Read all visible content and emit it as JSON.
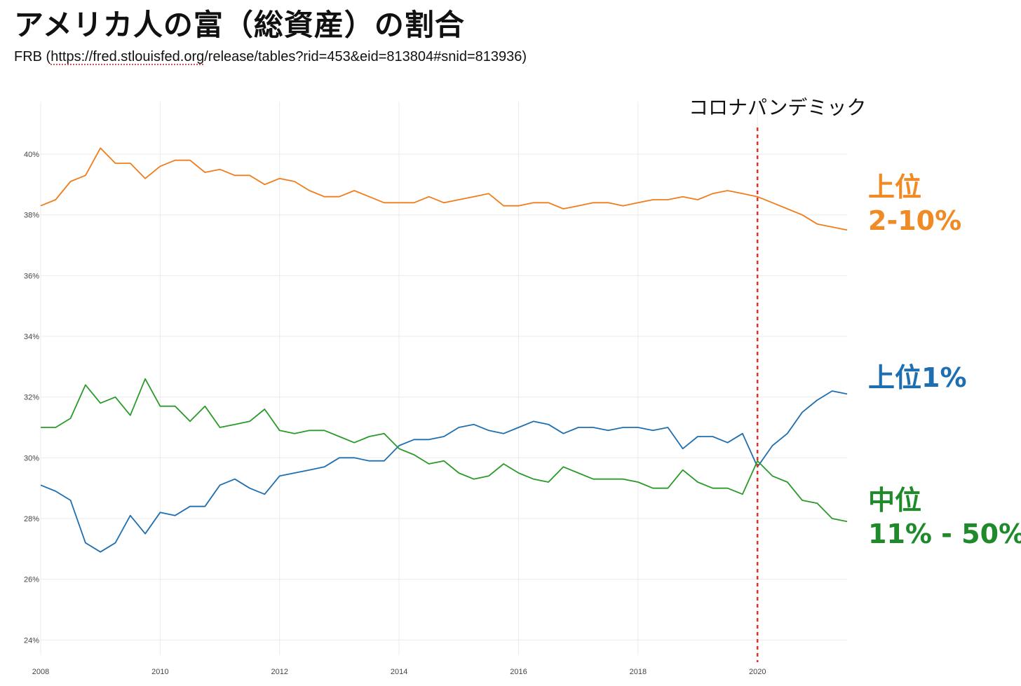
{
  "header": {
    "title": "アメリカ人の富（総資産）の割合",
    "source_prefix": "FRB (",
    "source_link": "https://fred.stlouisfed.org",
    "source_suffix": "/release/tables?rid=453&eid=813804#snid=813936)"
  },
  "labels": {
    "top2_10_line1": "上位",
    "top2_10_line2": "2-10%",
    "top1": "上位1%",
    "mid_line1": "中位",
    "mid_line2": "11% - 50%"
  },
  "chart_data": {
    "type": "line",
    "title": "アメリカ人の富（総資産）の割合",
    "xlim": [
      2008.0,
      2021.5
    ],
    "ylim": [
      23.5,
      41.5
    ],
    "x_ticks": [
      "2008",
      "2010",
      "2012",
      "2014",
      "2016",
      "2018",
      "2020"
    ],
    "y_ticks": [
      "24%",
      "26%",
      "28%",
      "30%",
      "32%",
      "34%",
      "36%",
      "38%",
      "40%"
    ],
    "grid": true,
    "x": [
      2008.0,
      2008.25,
      2008.5,
      2008.75,
      2009.0,
      2009.25,
      2009.5,
      2009.75,
      2010.0,
      2010.25,
      2010.5,
      2010.75,
      2011.0,
      2011.25,
      2011.5,
      2011.75,
      2012.0,
      2012.25,
      2012.5,
      2012.75,
      2013.0,
      2013.25,
      2013.5,
      2013.75,
      2014.0,
      2014.25,
      2014.5,
      2014.75,
      2015.0,
      2015.25,
      2015.5,
      2015.75,
      2016.0,
      2016.25,
      2016.5,
      2016.75,
      2017.0,
      2017.25,
      2017.5,
      2017.75,
      2018.0,
      2018.25,
      2018.5,
      2018.75,
      2019.0,
      2019.25,
      2019.5,
      2019.75,
      2020.0,
      2020.25,
      2020.5,
      2020.75,
      2021.0,
      2021.25,
      2021.5
    ],
    "series": [
      {
        "key": "top2_10",
        "color": "#f07d1c",
        "values": [
          38.3,
          38.5,
          39.1,
          39.3,
          40.2,
          39.7,
          39.7,
          39.2,
          39.6,
          39.8,
          39.8,
          39.4,
          39.5,
          39.3,
          39.3,
          39.0,
          39.2,
          39.1,
          38.8,
          38.6,
          38.6,
          38.8,
          38.6,
          38.4,
          38.4,
          38.4,
          38.6,
          38.4,
          38.5,
          38.6,
          38.7,
          38.3,
          38.3,
          38.4,
          38.4,
          38.2,
          38.3,
          38.4,
          38.4,
          38.3,
          38.4,
          38.5,
          38.5,
          38.6,
          38.5,
          38.7,
          38.8,
          38.7,
          38.6,
          38.4,
          38.2,
          38.0,
          37.7,
          37.6,
          37.5
        ]
      },
      {
        "key": "top1",
        "color": "#1f6fb0",
        "values": [
          29.1,
          28.9,
          28.6,
          27.2,
          26.9,
          27.2,
          28.1,
          27.5,
          28.2,
          28.1,
          28.4,
          28.4,
          29.1,
          29.3,
          29.0,
          28.8,
          29.4,
          29.5,
          29.6,
          29.7,
          30.0,
          30.0,
          29.9,
          29.9,
          30.4,
          30.6,
          30.6,
          30.7,
          31.0,
          31.1,
          30.9,
          30.8,
          31.0,
          31.2,
          31.1,
          30.8,
          31.0,
          31.0,
          30.9,
          31.0,
          31.0,
          30.9,
          31.0,
          30.3,
          30.7,
          30.7,
          30.5,
          30.8,
          29.7,
          30.4,
          30.8,
          31.5,
          31.9,
          32.2,
          32.1
        ]
      },
      {
        "key": "mid",
        "color": "#2a9a2a",
        "values": [
          31.0,
          31.0,
          31.3,
          32.4,
          31.8,
          32.0,
          31.4,
          32.6,
          31.7,
          31.7,
          31.2,
          31.7,
          31.0,
          31.1,
          31.2,
          31.6,
          30.9,
          30.8,
          30.9,
          30.9,
          30.7,
          30.5,
          30.7,
          30.8,
          30.3,
          30.1,
          29.8,
          29.9,
          29.5,
          29.3,
          29.4,
          29.8,
          29.5,
          29.3,
          29.2,
          29.7,
          29.5,
          29.3,
          29.3,
          29.3,
          29.2,
          29.0,
          29.0,
          29.6,
          29.2,
          29.0,
          29.0,
          28.8,
          29.9,
          29.4,
          29.2,
          28.6,
          28.5,
          28.0,
          27.9
        ]
      }
    ],
    "annotation": {
      "x": 2020.0,
      "label": "コロナパンデミック",
      "color": "#e5332a"
    }
  }
}
